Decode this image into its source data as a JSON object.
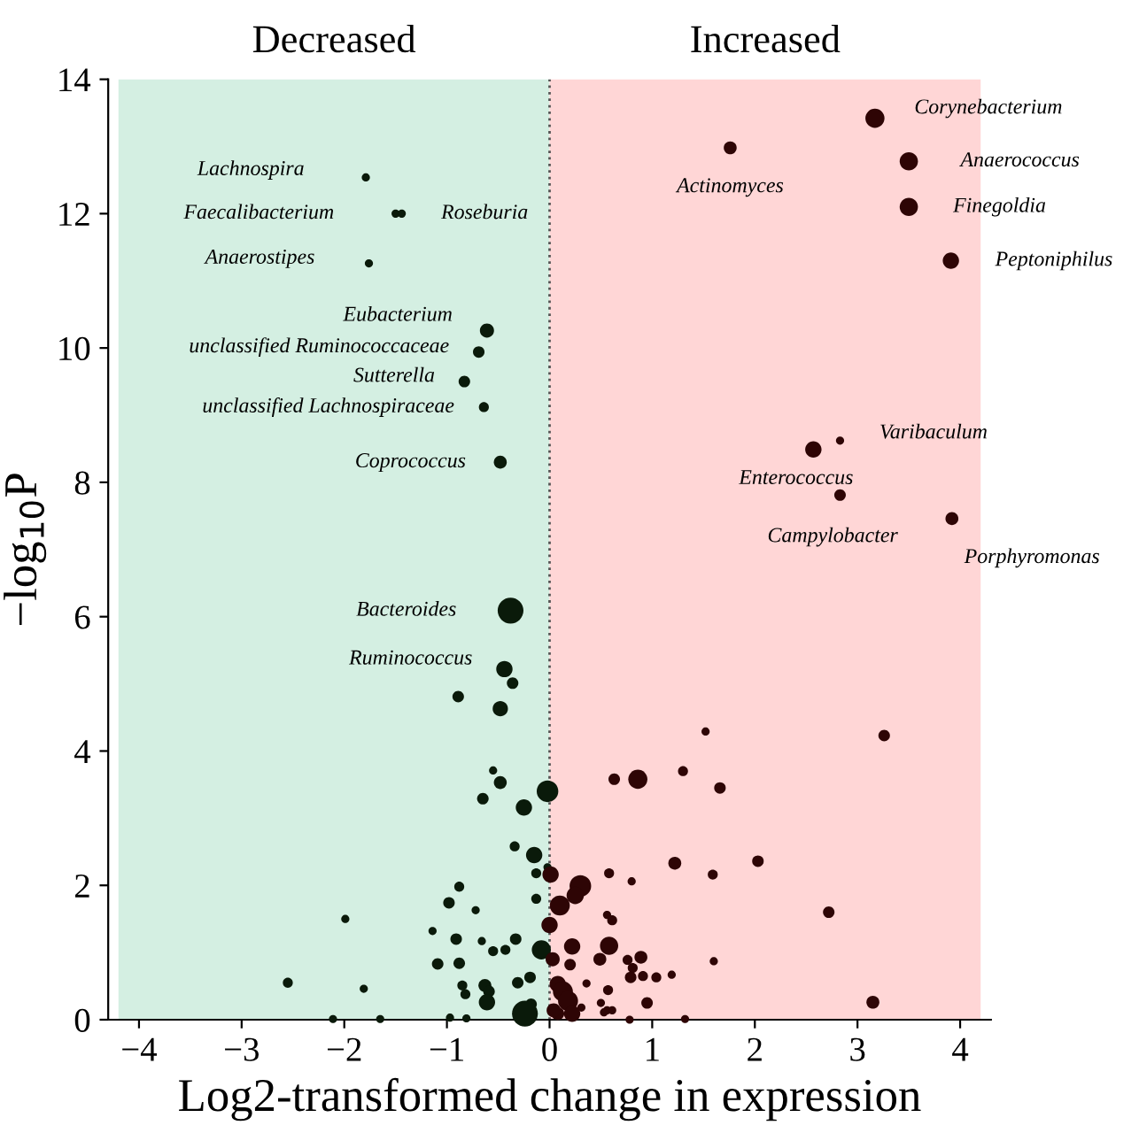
{
  "chart_data": {
    "type": "bubble",
    "xlabel": "Log2-transformed change in expression",
    "ylabel": "−log$_{10}$P",
    "xlim": [
      -4.3,
      4.3
    ],
    "ylim": [
      0,
      14
    ],
    "xticks": [
      {
        "value": -4,
        "label": "−4"
      },
      {
        "value": -3,
        "label": "−3"
      },
      {
        "value": -2,
        "label": "−2"
      },
      {
        "value": -1,
        "label": "−1"
      },
      0,
      1,
      2,
      3,
      4
    ],
    "yticks": [
      0,
      2,
      4,
      6,
      8,
      10,
      12,
      14
    ],
    "grid": false,
    "legend": false,
    "marker": "circle",
    "bands": [
      {
        "axis": "x",
        "from": -4.2,
        "to": 0,
        "label": "Decreased",
        "color": "#d4efe2"
      },
      {
        "axis": "x",
        "from": 0,
        "to": 4.2,
        "label": "Increased",
        "color": "#ffd6d6"
      }
    ],
    "ref_lines": [
      {
        "axis": "x",
        "value": 0,
        "color": "#555555",
        "line_style": "dotted"
      }
    ],
    "series": [
      {
        "color": "#0a1a0a",
        "x": [
          -1.79,
          -1.5,
          -1.44,
          -1.76,
          -0.61,
          -0.69,
          -0.83,
          -0.64,
          -0.48,
          -0.38,
          -0.44,
          -0.36,
          -0.89,
          -0.48,
          -0.55,
          -0.48,
          -0.65,
          -0.02,
          -0.25,
          -0.34,
          -0.15,
          -0.02,
          -0.13,
          -0.88,
          -0.98,
          -0.13,
          -0.72,
          -1.99,
          -1.14,
          -0.91,
          -0.66,
          -0.33,
          -0.43,
          -0.55,
          -0.08,
          -1.09,
          -0.88,
          -0.19,
          -0.31,
          -2.55,
          -1.81,
          -0.85,
          -0.82,
          -0.63,
          -0.59,
          -0.61,
          -0.18,
          -0.24,
          -2.11,
          -1.65,
          -0.97,
          -0.81
        ],
        "values": [
          12.54,
          12.0,
          12.0,
          11.26,
          10.26,
          9.94,
          9.5,
          9.12,
          8.3,
          6.09,
          5.22,
          5.01,
          4.81,
          4.63,
          3.71,
          3.53,
          3.29,
          3.4,
          3.16,
          2.58,
          2.45,
          2.27,
          2.18,
          1.98,
          1.74,
          1.8,
          1.63,
          1.5,
          1.32,
          1.2,
          1.17,
          1.2,
          1.04,
          1.02,
          1.04,
          0.83,
          0.84,
          0.63,
          0.55,
          0.55,
          0.46,
          0.51,
          0.38,
          0.51,
          0.42,
          0.26,
          0.23,
          0.09,
          0.01,
          0.01,
          0.03,
          0.02
        ],
        "sizes": [
          0.1,
          0.1,
          0.1,
          0.1,
          0.3,
          0.2,
          0.2,
          0.15,
          0.25,
          1.0,
          0.4,
          0.2,
          0.2,
          0.35,
          0.1,
          0.25,
          0.2,
          0.7,
          0.4,
          0.15,
          0.4,
          0.1,
          0.15,
          0.15,
          0.2,
          0.15,
          0.1,
          0.1,
          0.1,
          0.2,
          0.1,
          0.2,
          0.15,
          0.15,
          0.55,
          0.2,
          0.2,
          0.2,
          0.2,
          0.15,
          0.1,
          0.15,
          0.15,
          0.25,
          0.2,
          0.4,
          0.2,
          1.0,
          0.1,
          0.1,
          0.1,
          0.1
        ]
      },
      {
        "color": "#2e0505",
        "x": [
          3.17,
          1.76,
          3.5,
          3.5,
          3.91,
          2.83,
          2.57,
          2.83,
          3.92,
          1.52,
          3.26,
          1.3,
          0.63,
          0.86,
          1.66,
          1.22,
          2.03,
          0.58,
          1.59,
          0.8,
          0.01,
          0.3,
          0.25,
          0.1,
          2.72,
          0.56,
          0.61,
          0.0,
          0.22,
          0.58,
          0.03,
          0.49,
          0.89,
          0.76,
          0.81,
          0.2,
          1.6,
          0.79,
          0.91,
          1.04,
          1.19,
          0.36,
          0.08,
          0.13,
          0.57,
          0.18,
          0.5,
          0.95,
          3.15,
          0.31,
          0.08,
          0.22,
          0.53,
          0.56,
          0.61,
          1.32,
          0.78,
          0.04
        ],
        "values": [
          13.42,
          12.98,
          12.78,
          12.1,
          11.3,
          8.62,
          8.49,
          7.81,
          7.46,
          4.29,
          4.23,
          3.7,
          3.58,
          3.58,
          3.45,
          2.33,
          2.36,
          2.18,
          2.16,
          2.06,
          2.16,
          1.99,
          1.85,
          1.7,
          1.6,
          1.56,
          1.48,
          1.41,
          1.09,
          1.1,
          0.9,
          0.9,
          0.93,
          0.89,
          0.77,
          0.82,
          0.87,
          0.63,
          0.65,
          0.63,
          0.67,
          0.54,
          0.53,
          0.42,
          0.44,
          0.28,
          0.25,
          0.25,
          0.26,
          0.18,
          0.09,
          0.09,
          0.11,
          0.14,
          0.14,
          0.01,
          0.0,
          0.14
        ],
        "sizes": [
          0.55,
          0.25,
          0.5,
          0.5,
          0.4,
          0.1,
          0.4,
          0.2,
          0.25,
          0.1,
          0.2,
          0.15,
          0.2,
          0.55,
          0.2,
          0.25,
          0.2,
          0.15,
          0.15,
          0.1,
          0.4,
          0.7,
          0.45,
          0.6,
          0.2,
          0.1,
          0.15,
          0.4,
          0.4,
          0.5,
          0.3,
          0.25,
          0.25,
          0.15,
          0.15,
          0.2,
          0.1,
          0.2,
          0.15,
          0.15,
          0.1,
          0.1,
          0.4,
          0.6,
          0.15,
          0.6,
          0.1,
          0.2,
          0.25,
          0.1,
          0.25,
          0.4,
          0.1,
          0.1,
          0.1,
          0.1,
          0.1,
          0.3
        ]
      }
    ],
    "annotations": [
      {
        "text": "Lachnospira",
        "x": -1.79,
        "y": 12.54
      },
      {
        "text": "Faecalibacterium",
        "x": -1.5,
        "y": 12.0
      },
      {
        "text": "Roseburia",
        "x": -1.44,
        "y": 12.0
      },
      {
        "text": "Anaerostipes",
        "x": -1.76,
        "y": 11.26
      },
      {
        "text": "Eubacterium",
        "x": -0.61,
        "y": 10.26
      },
      {
        "text": "unclassified Ruminococcaceae",
        "x": -0.69,
        "y": 9.94
      },
      {
        "text": "Sutterella",
        "x": -0.83,
        "y": 9.5
      },
      {
        "text": "unclassified Lachnospiraceae",
        "x": -0.64,
        "y": 9.12
      },
      {
        "text": "Coprococcus",
        "x": -0.48,
        "y": 8.3
      },
      {
        "text": "Bacteroides",
        "x": -0.38,
        "y": 6.09
      },
      {
        "text": "Ruminococcus",
        "x": -0.44,
        "y": 5.22
      },
      {
        "text": "Corynebacterium",
        "x": 3.17,
        "y": 13.42
      },
      {
        "text": "Actinomyces",
        "x": 1.76,
        "y": 12.98
      },
      {
        "text": "Anaerococcus",
        "x": 3.5,
        "y": 12.78
      },
      {
        "text": "Finegoldia",
        "x": 3.5,
        "y": 12.1
      },
      {
        "text": "Peptoniphilus",
        "x": 3.91,
        "y": 11.3
      },
      {
        "text": "Varibaculum",
        "x": 2.83,
        "y": 8.62
      },
      {
        "text": "Enterococcus",
        "x": 2.57,
        "y": 8.49
      },
      {
        "text": "Campylobacter",
        "x": 2.83,
        "y": 7.81
      },
      {
        "text": "Porphyromonas",
        "x": 3.92,
        "y": 7.46
      }
    ]
  }
}
